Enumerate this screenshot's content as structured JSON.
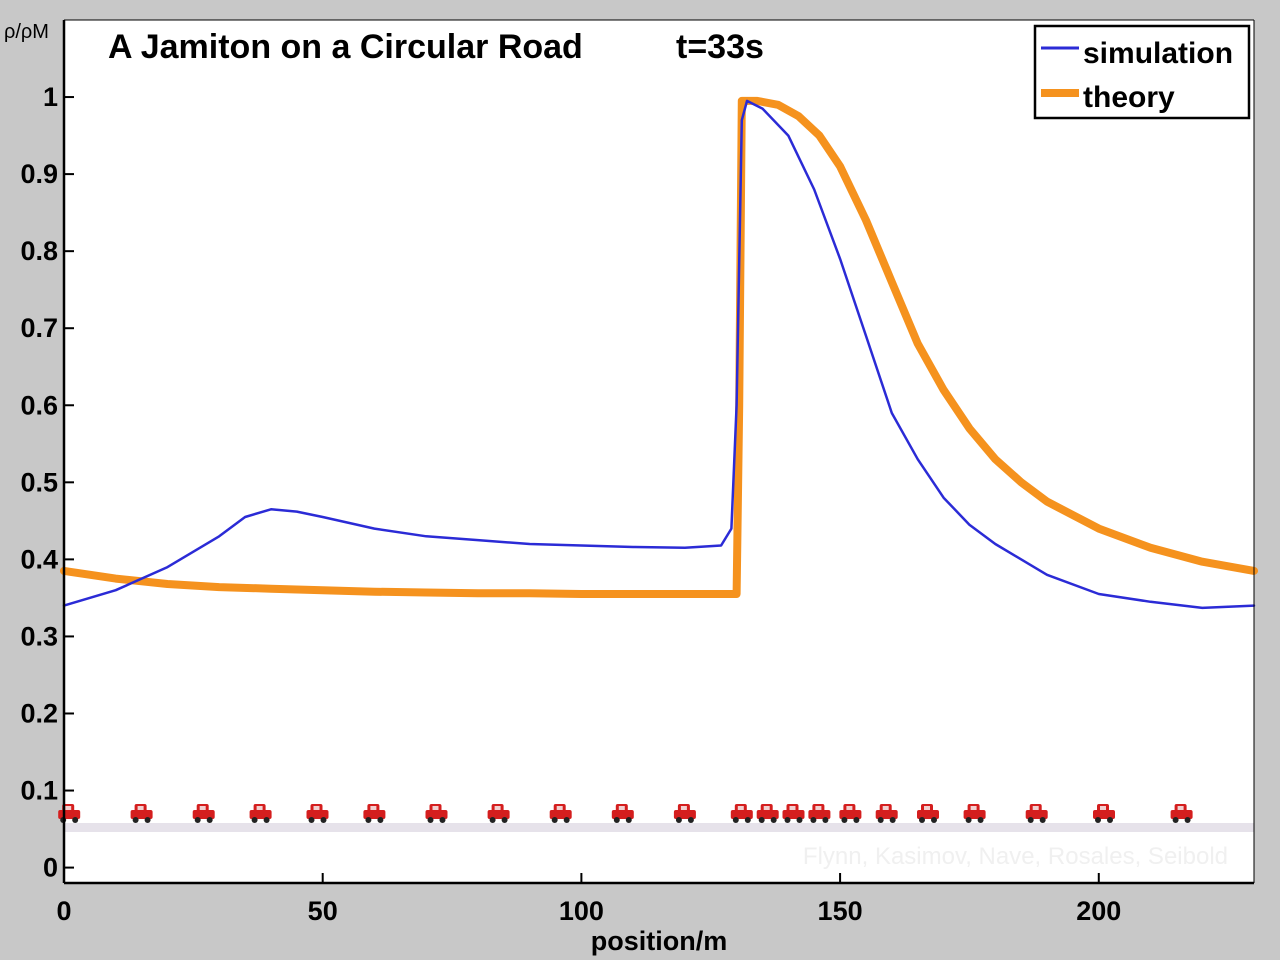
{
  "chart_data": {
    "type": "line",
    "title": "A Jamiton on a Circular Road",
    "time_label": "t=33s",
    "xlabel": "position/m",
    "ylabel": "ρ/ρM",
    "xlim": [
      0,
      230
    ],
    "ylim": [
      -0.02,
      1.1
    ],
    "xticks": [
      0,
      50,
      100,
      150,
      200
    ],
    "yticks": [
      0,
      0.1,
      0.2,
      0.3,
      0.4,
      0.5,
      0.6,
      0.7,
      0.8,
      0.9,
      1
    ],
    "ytick_labels": [
      "0",
      "0.1",
      "0.2",
      "0.3",
      "0.4",
      "0.5",
      "0.6",
      "0.7",
      "0.8",
      "0.9",
      "1"
    ],
    "legend_position": "top-right",
    "grid": false,
    "series": [
      {
        "name": "simulation",
        "color": "#2b2bd6",
        "x": [
          0,
          10,
          20,
          30,
          35,
          40,
          45,
          50,
          60,
          70,
          80,
          90,
          100,
          110,
          120,
          127,
          129,
          130,
          131,
          132,
          135,
          140,
          145,
          150,
          155,
          160,
          165,
          170,
          175,
          180,
          190,
          200,
          210,
          220,
          230
        ],
        "y": [
          0.34,
          0.36,
          0.39,
          0.43,
          0.455,
          0.465,
          0.462,
          0.455,
          0.44,
          0.43,
          0.425,
          0.42,
          0.418,
          0.416,
          0.415,
          0.418,
          0.44,
          0.6,
          0.97,
          0.995,
          0.985,
          0.95,
          0.88,
          0.79,
          0.69,
          0.59,
          0.53,
          0.48,
          0.445,
          0.42,
          0.38,
          0.355,
          0.345,
          0.337,
          0.34
        ]
      },
      {
        "name": "theory",
        "color": "#f5921e",
        "x": [
          0,
          10,
          20,
          30,
          40,
          50,
          60,
          70,
          80,
          90,
          100,
          110,
          120,
          130,
          130.5,
          131,
          134,
          138,
          142,
          146,
          150,
          155,
          160,
          165,
          170,
          175,
          180,
          185,
          190,
          200,
          210,
          220,
          230
        ],
        "y": [
          0.385,
          0.375,
          0.368,
          0.364,
          0.362,
          0.36,
          0.358,
          0.357,
          0.356,
          0.356,
          0.355,
          0.355,
          0.355,
          0.355,
          0.6,
          0.995,
          0.995,
          0.99,
          0.975,
          0.95,
          0.91,
          0.84,
          0.76,
          0.68,
          0.62,
          0.57,
          0.53,
          0.5,
          0.475,
          0.44,
          0.415,
          0.397,
          0.385
        ]
      }
    ],
    "cars": {
      "color": "#d41e1e",
      "positions": [
        1,
        15,
        27,
        38,
        49,
        60,
        72,
        84,
        96,
        108,
        120,
        131,
        136,
        141,
        146,
        152,
        159,
        167,
        176,
        188,
        201,
        216
      ]
    },
    "credit": "Flynn, Kasimov, Nave, Rosales, Seibold"
  }
}
